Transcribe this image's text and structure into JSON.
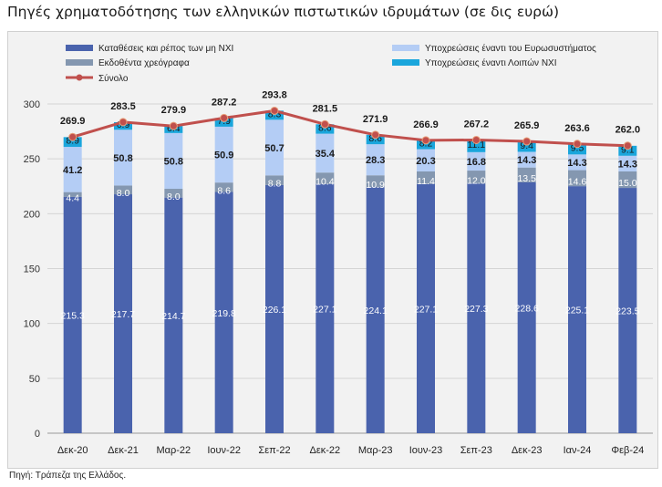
{
  "title": "Πηγές χρηματοδότησης των ελληνικών πιστωτικών ιδρυμάτων (σε δις ευρώ)",
  "source": "Πηγή: Τράπεζα της Ελλάδος.",
  "chart_data": {
    "type": "bar",
    "stacked": true,
    "categories": [
      "Δεκ-20",
      "Δεκ-21",
      "Μαρ-22",
      "Ιουν-22",
      "Σεπ-22",
      "Δεκ-22",
      "Μαρ-23",
      "Ιουν-23",
      "Σεπ-23",
      "Δεκ-23",
      "Ιαν-24",
      "Φεβ-24"
    ],
    "series": [
      {
        "name": "Καταθέσεις και ρέπος των μη ΝΧΙ",
        "color": "#4a63ad",
        "label_color": "#ffffff",
        "values": [
          215.3,
          217.7,
          214.7,
          219.8,
          226.1,
          227.1,
          224.1,
          227.1,
          227.3,
          228.6,
          225.1,
          223.5
        ]
      },
      {
        "name": "Εκδοθέντα χρεόγραφα",
        "color": "#8497b0",
        "label_color": "#ffffff",
        "values": [
          4.4,
          8.0,
          8.0,
          8.6,
          8.8,
          10.4,
          10.9,
          11.4,
          12.0,
          13.5,
          14.6,
          15.0
        ]
      },
      {
        "name": "Υποχρεώσεις έναντι του Ευρωσυστήματος",
        "color": "#b4cdf5",
        "label_color": "#1a1a1a",
        "values": [
          41.2,
          50.8,
          50.8,
          50.9,
          50.7,
          35.4,
          28.3,
          20.3,
          16.8,
          14.3,
          14.3,
          14.3
        ]
      },
      {
        "name": "Υποχρεώσεις έναντι Λοιπών ΝΧΙ",
        "color": "#1aa6dc",
        "label_color": "#1a1a1a",
        "values": [
          8.9,
          6.9,
          6.4,
          7.9,
          8.3,
          8.6,
          8.6,
          8.2,
          11.1,
          9.4,
          9.5,
          9.1
        ]
      }
    ],
    "total": {
      "name": "Σύνολο",
      "color": "#c0504d",
      "values": [
        269.9,
        283.5,
        279.9,
        287.2,
        293.8,
        281.5,
        271.9,
        266.9,
        267.2,
        265.9,
        263.6,
        262.0
      ]
    },
    "ylim": [
      0,
      300
    ],
    "yticks": [
      "0",
      "50",
      "100",
      "150",
      "200",
      "250",
      "300"
    ],
    "grid": true,
    "legend_position": "top"
  }
}
